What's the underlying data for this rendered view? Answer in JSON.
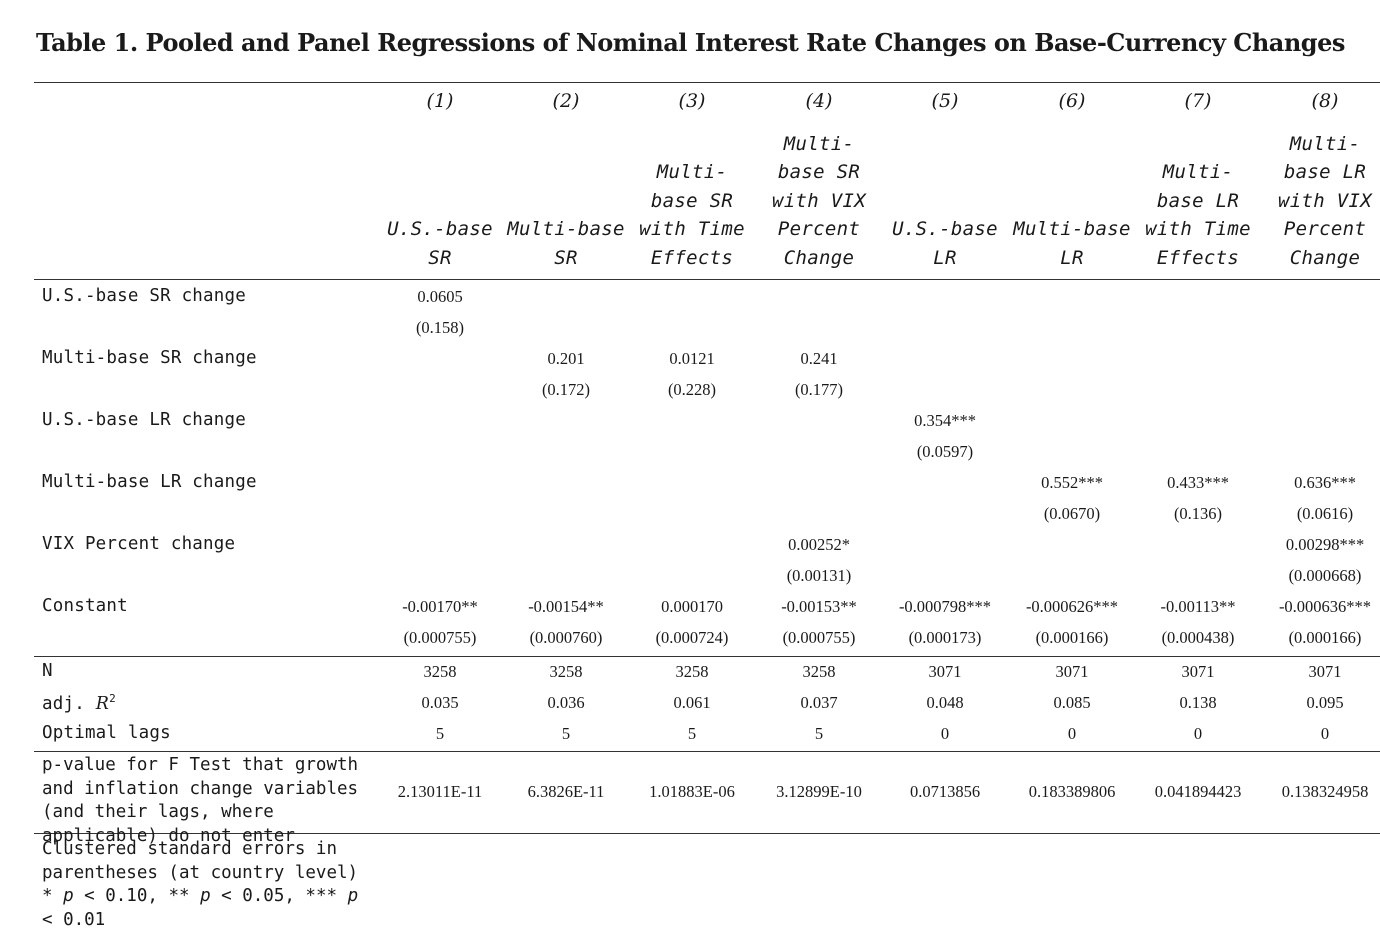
{
  "title": "Table 1. Pooled and Panel Regressions of Nominal Interest Rate Changes on Base-Currency Changes",
  "columns": [
    {
      "num": "(1)",
      "head": "U.S.-base\nSR"
    },
    {
      "num": "(2)",
      "head": "Multi-base\nSR"
    },
    {
      "num": "(3)",
      "head": "Multi-\nbase SR\nwith Time\nEffects"
    },
    {
      "num": "(4)",
      "head": "Multi-\nbase SR\nwith VIX\nPercent\nChange"
    },
    {
      "num": "(5)",
      "head": "U.S.-base\nLR"
    },
    {
      "num": "(6)",
      "head": "Multi-base\nLR"
    },
    {
      "num": "(7)",
      "head": "Multi-\nbase LR\nwith Time\nEffects"
    },
    {
      "num": "(8)",
      "head": "Multi-\nbase LR\nwith VIX\nPercent\nChange"
    }
  ],
  "rows": [
    {
      "label": "U.S.-base SR change",
      "coef": [
        "0.0605",
        "",
        "",
        "",
        "",
        "",
        "",
        ""
      ],
      "se": [
        "(0.158)",
        "",
        "",
        "",
        "",
        "",
        "",
        ""
      ]
    },
    {
      "label": "Multi-base SR change",
      "coef": [
        "",
        "0.201",
        "0.0121",
        "0.241",
        "",
        "",
        "",
        ""
      ],
      "se": [
        "",
        "(0.172)",
        "(0.228)",
        "(0.177)",
        "",
        "",
        "",
        ""
      ]
    },
    {
      "label": "U.S.-base LR change",
      "coef": [
        "",
        "",
        "",
        "",
        "0.354***",
        "",
        "",
        ""
      ],
      "se": [
        "",
        "",
        "",
        "",
        "(0.0597)",
        "",
        "",
        ""
      ]
    },
    {
      "label": "Multi-base LR change",
      "coef": [
        "",
        "",
        "",
        "",
        "",
        "0.552***",
        "0.433***",
        "0.636***"
      ],
      "se": [
        "",
        "",
        "",
        "",
        "",
        "(0.0670)",
        "(0.136)",
        "(0.0616)"
      ]
    },
    {
      "label": "VIX Percent change",
      "coef": [
        "",
        "",
        "",
        "0.00252*",
        "",
        "",
        "",
        "0.00298***"
      ],
      "se": [
        "",
        "",
        "",
        "(0.00131)",
        "",
        "",
        "",
        "(0.000668)"
      ]
    },
    {
      "label": "Constant",
      "coef": [
        "-0.00170**",
        "-0.00154**",
        "0.000170",
        "-0.00153**",
        "-0.000798***",
        "-0.000626***",
        "-0.00113**",
        "-0.000636***"
      ],
      "se": [
        "(0.000755)",
        "(0.000760)",
        "(0.000724)",
        "(0.000755)",
        "(0.000173)",
        "(0.000166)",
        "(0.000438)",
        "(0.000166)"
      ]
    }
  ],
  "stats": [
    {
      "label": "N",
      "values": [
        "3258",
        "3258",
        "3258",
        "3258",
        "3071",
        "3071",
        "3071",
        "3071"
      ]
    },
    {
      "label_pre": "adj. ",
      "label_r": "R",
      "label_sup": "2",
      "values": [
        "0.035",
        "0.036",
        "0.061",
        "0.037",
        "0.048",
        "0.085",
        "0.138",
        "0.095"
      ]
    },
    {
      "label": "Optimal lags",
      "values": [
        "5",
        "5",
        "5",
        "5",
        "0",
        "0",
        "0",
        "0"
      ]
    }
  ],
  "pvalue_row": {
    "label": "p-value for F Test that growth and inflation change variables (and their lags, where applicable) do not enter",
    "values": [
      "2.13011E-11",
      "6.3826E-11",
      "1.01883E-06",
      "3.12899E-10",
      "0.0713856",
      "0.183389806",
      "0.041894423",
      "0.138324958"
    ]
  },
  "note": {
    "part1": "Clustered standard errors in parentheses (at country level) * ",
    "p1": "p",
    "part2": " < 0.10, ** ",
    "p2": "p",
    "part3": " < 0.05, *** ",
    "p3": "p",
    "part4": " < 0.01"
  }
}
